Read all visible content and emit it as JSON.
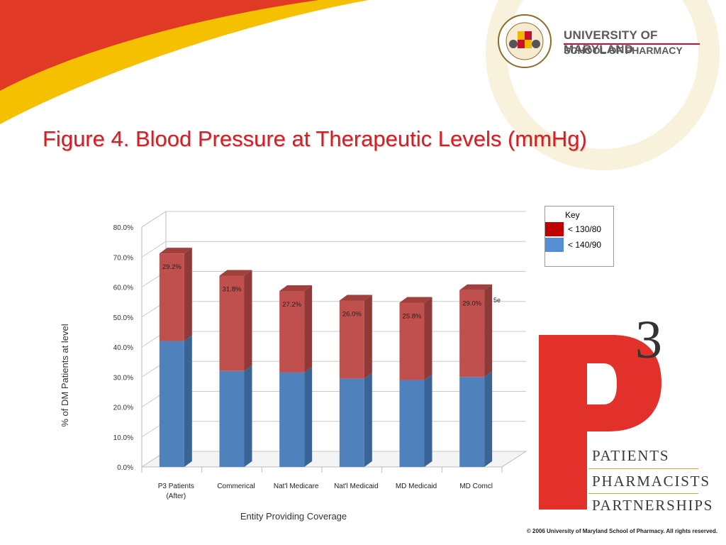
{
  "header": {
    "university_name": "UNIVERSITY OF MARYLAND",
    "school_name": "SCHOOL OF PHARMACY",
    "seal_text": "UNIVERSITY OF MARYLAND BALTIMORE",
    "watermark_text": "BALTIMORE"
  },
  "title": "Figure 4. Blood Pressure at Therapeutic Levels (mmHg)",
  "legend": {
    "title": "Key",
    "items": [
      {
        "label": "< 130/80",
        "color": "#c00000"
      },
      {
        "label": "< 140/90",
        "color": "#558ed5"
      }
    ]
  },
  "chart_data": {
    "type": "bar",
    "stacked": true,
    "categories": [
      "P3 Patients (After)",
      "Commerical",
      "Nat'l Medicare",
      "Nat'l Medicaid",
      "MD Medicaid",
      "MD Comcl"
    ],
    "series": [
      {
        "values": [
          42.0,
          32.0,
          31.5,
          29.5,
          29.0,
          30.0
        ],
        "color": "#4f81bd"
      },
      {
        "values": [
          29.2,
          31.8,
          27.2,
          26.0,
          25.8,
          29.0
        ],
        "color": "#c0504d"
      }
    ],
    "data_labels": [
      "29.2%",
      "31.8%",
      "27.2%",
      "26.0%",
      "25.8%",
      "29.0%"
    ],
    "y_ticks": [
      "0.0%",
      "10.0%",
      "20.0%",
      "30.0%",
      "40.0%",
      "50.0%",
      "60.0%",
      "70.0%",
      "80.0%"
    ],
    "ylim": [
      0,
      80
    ],
    "xlabel": "Entity Providing Coverage",
    "ylabel": "% of  DM  Patients at level",
    "grid": true,
    "stray_text": "5e"
  },
  "branding": {
    "p3_letter": "P",
    "p3_exponent": "3",
    "lines": [
      "PATIENTS",
      "PHARMACISTS",
      "PARTNERSHIPS"
    ]
  },
  "footer": {
    "copyright": "© 2006 University of Maryland School of Pharmacy. All rights reserved."
  }
}
